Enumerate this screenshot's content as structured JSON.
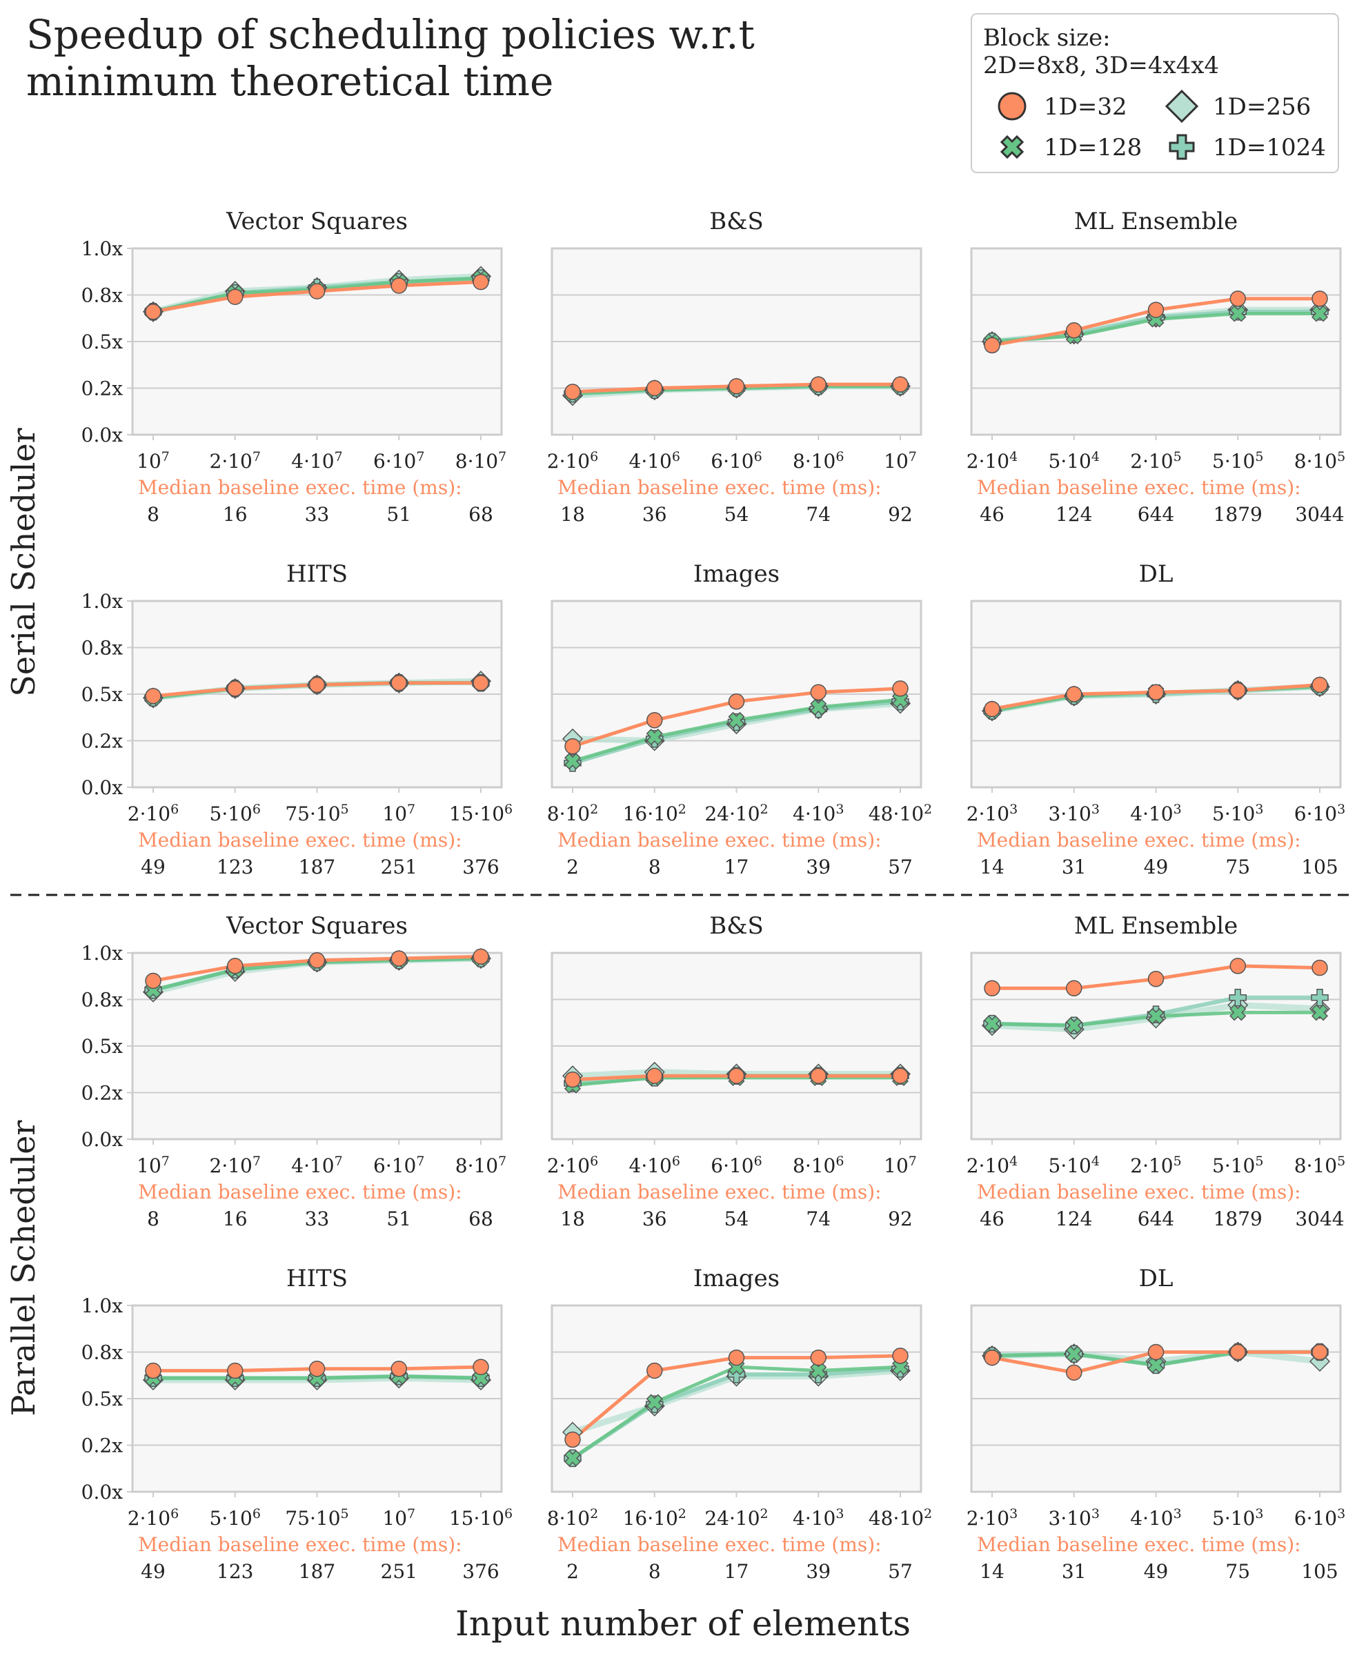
{
  "title_lines": [
    "Speedup of scheduling policies w.r.t",
    "minimum theoretical time"
  ],
  "xlabel": "Input number of elements",
  "baseline_label": "Median baseline exec. time (ms):",
  "y_ticks": [
    "0.0x",
    "0.2x",
    "0.5x",
    "0.8x",
    "1.0x"
  ],
  "legend": {
    "title_lines": [
      "Block size:",
      "2D=8x8, 3D=4x4x4"
    ],
    "entries": [
      {
        "label": "1D=32",
        "marker": "circle",
        "color": "#fc8d62"
      },
      {
        "label": "1D=256",
        "marker": "diamond",
        "color": "#b8e0d2"
      },
      {
        "label": "1D=128",
        "marker": "x",
        "color": "#66c487"
      },
      {
        "label": "1D=1024",
        "marker": "plus",
        "color": "#8ccfb9"
      }
    ]
  },
  "colors": {
    "s32": "#fc8d62",
    "s128": "#66c487",
    "s256": "#b8e0d2",
    "s1024": "#8ccfb9",
    "baseline_text": "#fc8d62",
    "grid": "#cccccc",
    "panel_bg": "#f7f7f7"
  },
  "chart_data": [
    {
      "type": "line",
      "group": "Serial Scheduler",
      "title": "Vector Squares",
      "ylim": [
        0,
        1
      ],
      "x_ticks": [
        "10^7",
        "2·10^7",
        "4·10^7",
        "6·10^7",
        "8·10^7"
      ],
      "baseline": [
        "8",
        "16",
        "33",
        "51",
        "68"
      ],
      "series": [
        {
          "name": "1D=32",
          "values": [
            0.66,
            0.74,
            0.77,
            0.8,
            0.82
          ]
        },
        {
          "name": "1D=128",
          "values": [
            0.66,
            0.76,
            0.78,
            0.82,
            0.84
          ]
        },
        {
          "name": "1D=256",
          "values": [
            0.66,
            0.77,
            0.79,
            0.83,
            0.85
          ]
        },
        {
          "name": "1D=1024",
          "values": [
            0.66,
            0.76,
            0.79,
            0.82,
            0.84
          ]
        }
      ]
    },
    {
      "type": "line",
      "group": "Serial Scheduler",
      "title": "B&S",
      "ylim": [
        0,
        1
      ],
      "x_ticks": [
        "2·10^6",
        "4·10^6",
        "6·10^6",
        "8·10^6",
        "10^7"
      ],
      "baseline": [
        "18",
        "36",
        "54",
        "74",
        "92"
      ],
      "series": [
        {
          "name": "1D=32",
          "values": [
            0.23,
            0.25,
            0.26,
            0.27,
            0.27
          ]
        },
        {
          "name": "1D=128",
          "values": [
            0.22,
            0.24,
            0.25,
            0.26,
            0.26
          ]
        },
        {
          "name": "1D=256",
          "values": [
            0.21,
            0.24,
            0.25,
            0.26,
            0.26
          ]
        },
        {
          "name": "1D=1024",
          "values": [
            0.22,
            0.24,
            0.25,
            0.26,
            0.26
          ]
        }
      ]
    },
    {
      "type": "line",
      "group": "Serial Scheduler",
      "title": "ML Ensemble",
      "ylim": [
        0,
        1
      ],
      "x_ticks": [
        "2·10^4",
        "5·10^4",
        "2·10^5",
        "5·10^5",
        "8·10^5"
      ],
      "baseline": [
        "46",
        "124",
        "644",
        "1879",
        "3044"
      ],
      "series": [
        {
          "name": "1D=32",
          "values": [
            0.48,
            0.56,
            0.67,
            0.73,
            0.73
          ]
        },
        {
          "name": "1D=128",
          "values": [
            0.5,
            0.53,
            0.62,
            0.65,
            0.65
          ]
        },
        {
          "name": "1D=256",
          "values": [
            0.5,
            0.54,
            0.63,
            0.67,
            0.67
          ]
        },
        {
          "name": "1D=1024",
          "values": [
            0.5,
            0.54,
            0.63,
            0.66,
            0.66
          ]
        }
      ]
    },
    {
      "type": "line",
      "group": "Serial Scheduler",
      "title": "HITS",
      "ylim": [
        0,
        1
      ],
      "x_ticks": [
        "2·10^6",
        "5·10^6",
        "75·10^5",
        "10^7",
        "15·10^6"
      ],
      "baseline": [
        "49",
        "123",
        "187",
        "251",
        "376"
      ],
      "series": [
        {
          "name": "1D=32",
          "values": [
            0.49,
            0.53,
            0.55,
            0.56,
            0.56
          ]
        },
        {
          "name": "1D=128",
          "values": [
            0.48,
            0.53,
            0.55,
            0.56,
            0.56
          ]
        },
        {
          "name": "1D=256",
          "values": [
            0.48,
            0.53,
            0.55,
            0.56,
            0.57
          ]
        },
        {
          "name": "1D=1024",
          "values": [
            0.48,
            0.53,
            0.55,
            0.56,
            0.56
          ]
        }
      ]
    },
    {
      "type": "line",
      "group": "Serial Scheduler",
      "title": "Images",
      "ylim": [
        0,
        1
      ],
      "x_ticks": [
        "8·10^2",
        "16·10^2",
        "24·10^2",
        "4·10^3",
        "48·10^2"
      ],
      "baseline": [
        "2",
        "8",
        "17",
        "39",
        "57"
      ],
      "series": [
        {
          "name": "1D=32",
          "values": [
            0.22,
            0.36,
            0.46,
            0.51,
            0.53
          ]
        },
        {
          "name": "1D=128",
          "values": [
            0.14,
            0.27,
            0.36,
            0.43,
            0.47
          ]
        },
        {
          "name": "1D=256",
          "values": [
            0.26,
            0.25,
            0.34,
            0.42,
            0.45
          ]
        },
        {
          "name": "1D=1024",
          "values": [
            0.13,
            0.26,
            0.35,
            0.42,
            0.46
          ]
        }
      ]
    },
    {
      "type": "line",
      "group": "Serial Scheduler",
      "title": "DL",
      "ylim": [
        0,
        1
      ],
      "x_ticks": [
        "2·10^3",
        "3·10^3",
        "4·10^3",
        "5·10^3",
        "6·10^3"
      ],
      "baseline": [
        "14",
        "31",
        "49",
        "75",
        "105"
      ],
      "series": [
        {
          "name": "1D=32",
          "values": [
            0.42,
            0.5,
            0.51,
            0.52,
            0.55
          ]
        },
        {
          "name": "1D=128",
          "values": [
            0.41,
            0.49,
            0.51,
            0.52,
            0.54
          ]
        },
        {
          "name": "1D=256",
          "values": [
            0.41,
            0.49,
            0.5,
            0.52,
            0.54
          ]
        },
        {
          "name": "1D=1024",
          "values": [
            0.41,
            0.49,
            0.5,
            0.52,
            0.54
          ]
        }
      ]
    },
    {
      "type": "line",
      "group": "Parallel Scheduler",
      "title": "Vector Squares",
      "ylim": [
        0,
        1
      ],
      "x_ticks": [
        "10^7",
        "2·10^7",
        "4·10^7",
        "6·10^7",
        "8·10^7"
      ],
      "baseline": [
        "8",
        "16",
        "33",
        "51",
        "68"
      ],
      "series": [
        {
          "name": "1D=32",
          "values": [
            0.85,
            0.93,
            0.96,
            0.97,
            0.98
          ]
        },
        {
          "name": "1D=128",
          "values": [
            0.8,
            0.91,
            0.95,
            0.96,
            0.97
          ]
        },
        {
          "name": "1D=256",
          "values": [
            0.79,
            0.9,
            0.95,
            0.96,
            0.97
          ]
        },
        {
          "name": "1D=1024",
          "values": [
            0.8,
            0.91,
            0.95,
            0.96,
            0.97
          ]
        }
      ]
    },
    {
      "type": "line",
      "group": "Parallel Scheduler",
      "title": "B&S",
      "ylim": [
        0,
        1
      ],
      "x_ticks": [
        "2·10^6",
        "4·10^6",
        "6·10^6",
        "8·10^6",
        "10^7"
      ],
      "baseline": [
        "18",
        "36",
        "54",
        "74",
        "92"
      ],
      "series": [
        {
          "name": "1D=32",
          "values": [
            0.32,
            0.34,
            0.34,
            0.34,
            0.34
          ]
        },
        {
          "name": "1D=128",
          "values": [
            0.29,
            0.33,
            0.33,
            0.33,
            0.33
          ]
        },
        {
          "name": "1D=256",
          "values": [
            0.34,
            0.36,
            0.35,
            0.35,
            0.35
          ]
        },
        {
          "name": "1D=1024",
          "values": [
            0.3,
            0.33,
            0.34,
            0.34,
            0.34
          ]
        }
      ]
    },
    {
      "type": "line",
      "group": "Parallel Scheduler",
      "title": "ML Ensemble",
      "ylim": [
        0,
        1
      ],
      "x_ticks": [
        "2·10^4",
        "5·10^4",
        "2·10^5",
        "5·10^5",
        "8·10^5"
      ],
      "baseline": [
        "46",
        "124",
        "644",
        "1879",
        "3044"
      ],
      "series": [
        {
          "name": "1D=32",
          "values": [
            0.81,
            0.81,
            0.86,
            0.93,
            0.92
          ]
        },
        {
          "name": "1D=128",
          "values": [
            0.62,
            0.61,
            0.66,
            0.68,
            0.68
          ]
        },
        {
          "name": "1D=256",
          "values": [
            0.61,
            0.59,
            0.65,
            0.72,
            0.7
          ]
        },
        {
          "name": "1D=1024",
          "values": [
            0.62,
            0.61,
            0.67,
            0.76,
            0.76
          ]
        }
      ]
    },
    {
      "type": "line",
      "group": "Parallel Scheduler",
      "title": "HITS",
      "ylim": [
        0,
        1
      ],
      "x_ticks": [
        "2·10^6",
        "5·10^6",
        "75·10^5",
        "10^7",
        "15·10^6"
      ],
      "baseline": [
        "49",
        "123",
        "187",
        "251",
        "376"
      ],
      "series": [
        {
          "name": "1D=32",
          "values": [
            0.65,
            0.65,
            0.66,
            0.66,
            0.67
          ]
        },
        {
          "name": "1D=128",
          "values": [
            0.61,
            0.61,
            0.61,
            0.62,
            0.61
          ]
        },
        {
          "name": "1D=256",
          "values": [
            0.6,
            0.6,
            0.6,
            0.61,
            0.6
          ]
        },
        {
          "name": "1D=1024",
          "values": [
            0.61,
            0.61,
            0.61,
            0.62,
            0.61
          ]
        }
      ]
    },
    {
      "type": "line",
      "group": "Parallel Scheduler",
      "title": "Images",
      "ylim": [
        0,
        1
      ],
      "x_ticks": [
        "8·10^2",
        "16·10^2",
        "24·10^2",
        "4·10^3",
        "48·10^2"
      ],
      "baseline": [
        "2",
        "8",
        "17",
        "39",
        "57"
      ],
      "series": [
        {
          "name": "1D=32",
          "values": [
            0.28,
            0.65,
            0.72,
            0.72,
            0.73
          ]
        },
        {
          "name": "1D=128",
          "values": [
            0.18,
            0.48,
            0.67,
            0.65,
            0.67
          ]
        },
        {
          "name": "1D=256",
          "values": [
            0.32,
            0.46,
            0.62,
            0.62,
            0.65
          ]
        },
        {
          "name": "1D=1024",
          "values": [
            0.18,
            0.47,
            0.63,
            0.63,
            0.66
          ]
        }
      ]
    },
    {
      "type": "line",
      "group": "Parallel Scheduler",
      "title": "DL",
      "ylim": [
        0,
        1
      ],
      "x_ticks": [
        "2·10^3",
        "3·10^3",
        "4·10^3",
        "5·10^3",
        "6·10^3"
      ],
      "baseline": [
        "14",
        "31",
        "49",
        "75",
        "105"
      ],
      "series": [
        {
          "name": "1D=32",
          "values": [
            0.72,
            0.64,
            0.75,
            0.75,
            0.75
          ]
        },
        {
          "name": "1D=128",
          "values": [
            0.73,
            0.74,
            0.68,
            0.75,
            0.75
          ]
        },
        {
          "name": "1D=256",
          "values": [
            0.73,
            0.74,
            0.7,
            0.75,
            0.7
          ]
        },
        {
          "name": "1D=1024",
          "values": [
            0.73,
            0.74,
            0.68,
            0.75,
            0.75
          ]
        }
      ]
    }
  ]
}
